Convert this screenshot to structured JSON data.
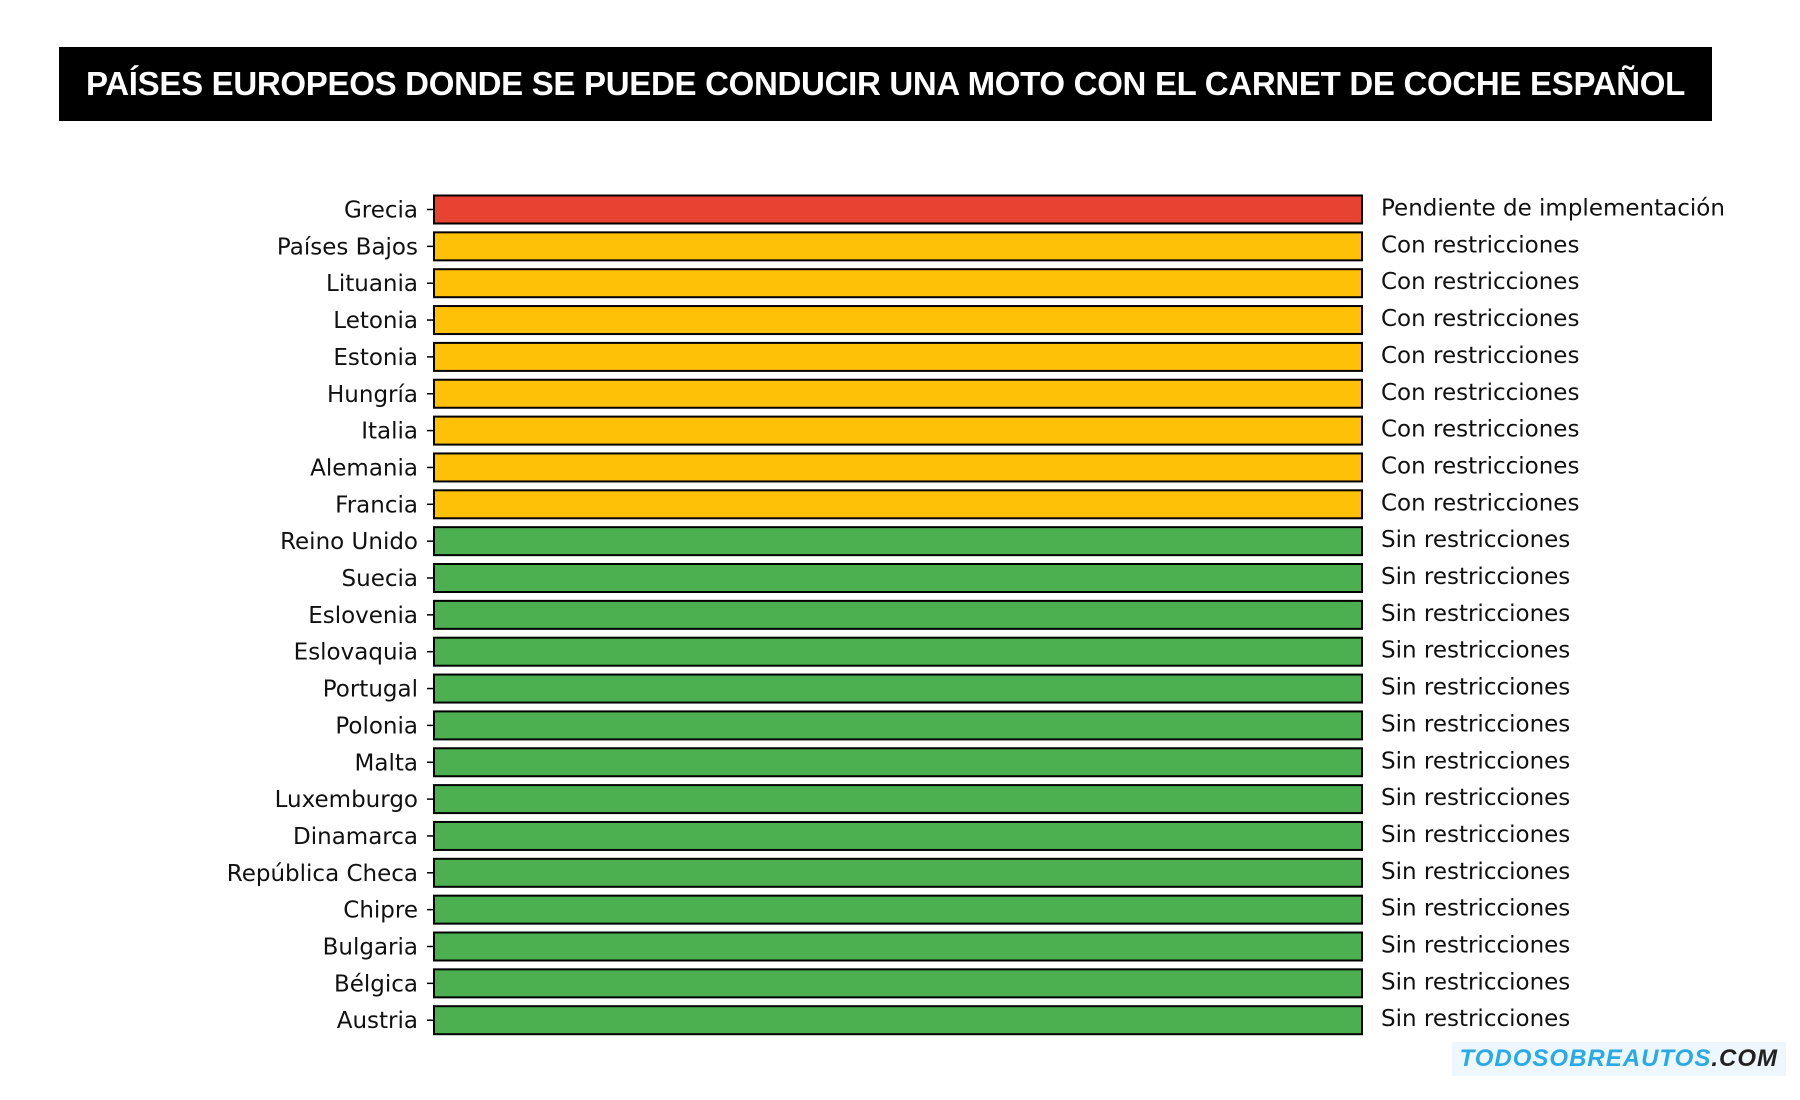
{
  "chart_data": {
    "type": "bar",
    "orientation": "horizontal",
    "title": "PAÍSES EUROPEOS DONDE SE PUEDE CONDUCIR UNA MOTO CON EL CARNET DE COCHE ESPAÑOL",
    "xlabel": "",
    "ylabel": "",
    "categories": [
      "Grecia",
      "Países Bajos",
      "Lituania",
      "Letonia",
      "Estonia",
      "Hungría",
      "Italia",
      "Alemania",
      "Francia",
      "Reino Unido",
      "Suecia",
      "Eslovenia",
      "Eslovaquia",
      "Portugal",
      "Polonia",
      "Malta",
      "Luxemburgo",
      "Dinamarca",
      "República Checa",
      "Chipre",
      "Bulgaria",
      "Bélgica",
      "Austria"
    ],
    "values": [
      1,
      1,
      1,
      1,
      1,
      1,
      1,
      1,
      1,
      1,
      1,
      1,
      1,
      1,
      1,
      1,
      1,
      1,
      1,
      1,
      1,
      1,
      1
    ],
    "status": [
      "Pendiente de implementación",
      "Con restricciones",
      "Con restricciones",
      "Con restricciones",
      "Con restricciones",
      "Con restricciones",
      "Con restricciones",
      "Con restricciones",
      "Con restricciones",
      "Sin restricciones",
      "Sin restricciones",
      "Sin restricciones",
      "Sin restricciones",
      "Sin restricciones",
      "Sin restricciones",
      "Sin restricciones",
      "Sin restricciones",
      "Sin restricciones",
      "Sin restricciones",
      "Sin restricciones",
      "Sin restricciones",
      "Sin restricciones",
      "Sin restricciones"
    ],
    "status_colors": {
      "Pendiente de implementación": "#e84233",
      "Con restricciones": "#ffc107",
      "Sin restricciones": "#4caf50"
    },
    "xlim": [
      0,
      1
    ],
    "grid": false,
    "legend": "none"
  },
  "watermark": {
    "brand": "TODOSOBREAUTOS",
    "suffix": ".COM"
  }
}
